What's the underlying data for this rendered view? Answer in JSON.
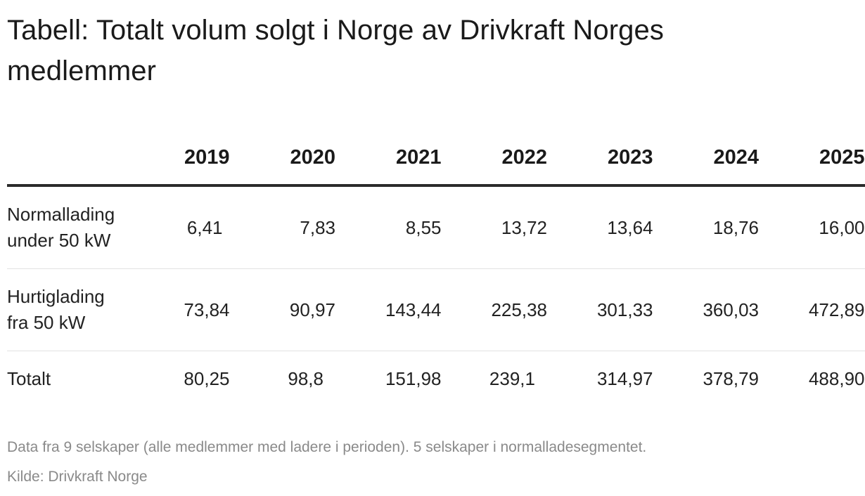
{
  "title": "Tabell: Totalt volum solgt i Norge av Drivkraft Norges medlemmer",
  "chart_data": {
    "type": "table",
    "title": "Tabell: Totalt volum solgt i Norge av Drivkraft Norges medlemmer",
    "columns": [
      "",
      "2019",
      "2020",
      "2021",
      "2022",
      "2023",
      "2024",
      "2025"
    ],
    "rows": [
      {
        "label": "Normallading under 50 kW",
        "values": [
          "6,41",
          "7,83",
          "8,55",
          "13,72",
          "13,64",
          "18,76",
          "16,00"
        ]
      },
      {
        "label": "Hurtiglading fra 50 kW",
        "values": [
          "73,84",
          "90,97",
          "143,44",
          "225,38",
          "301,33",
          "360,03",
          "472,89"
        ]
      },
      {
        "label": "Totalt",
        "values": [
          "80,25",
          "98,8",
          "151,98",
          "239,1",
          "314,97",
          "378,79",
          "488,90"
        ]
      }
    ]
  },
  "note": "Data fra 9 selskaper (alle medlemmer med ladere i perioden). 5 selskaper i normalladesegmentet.",
  "source": "Kilde: Drivkraft Norge"
}
